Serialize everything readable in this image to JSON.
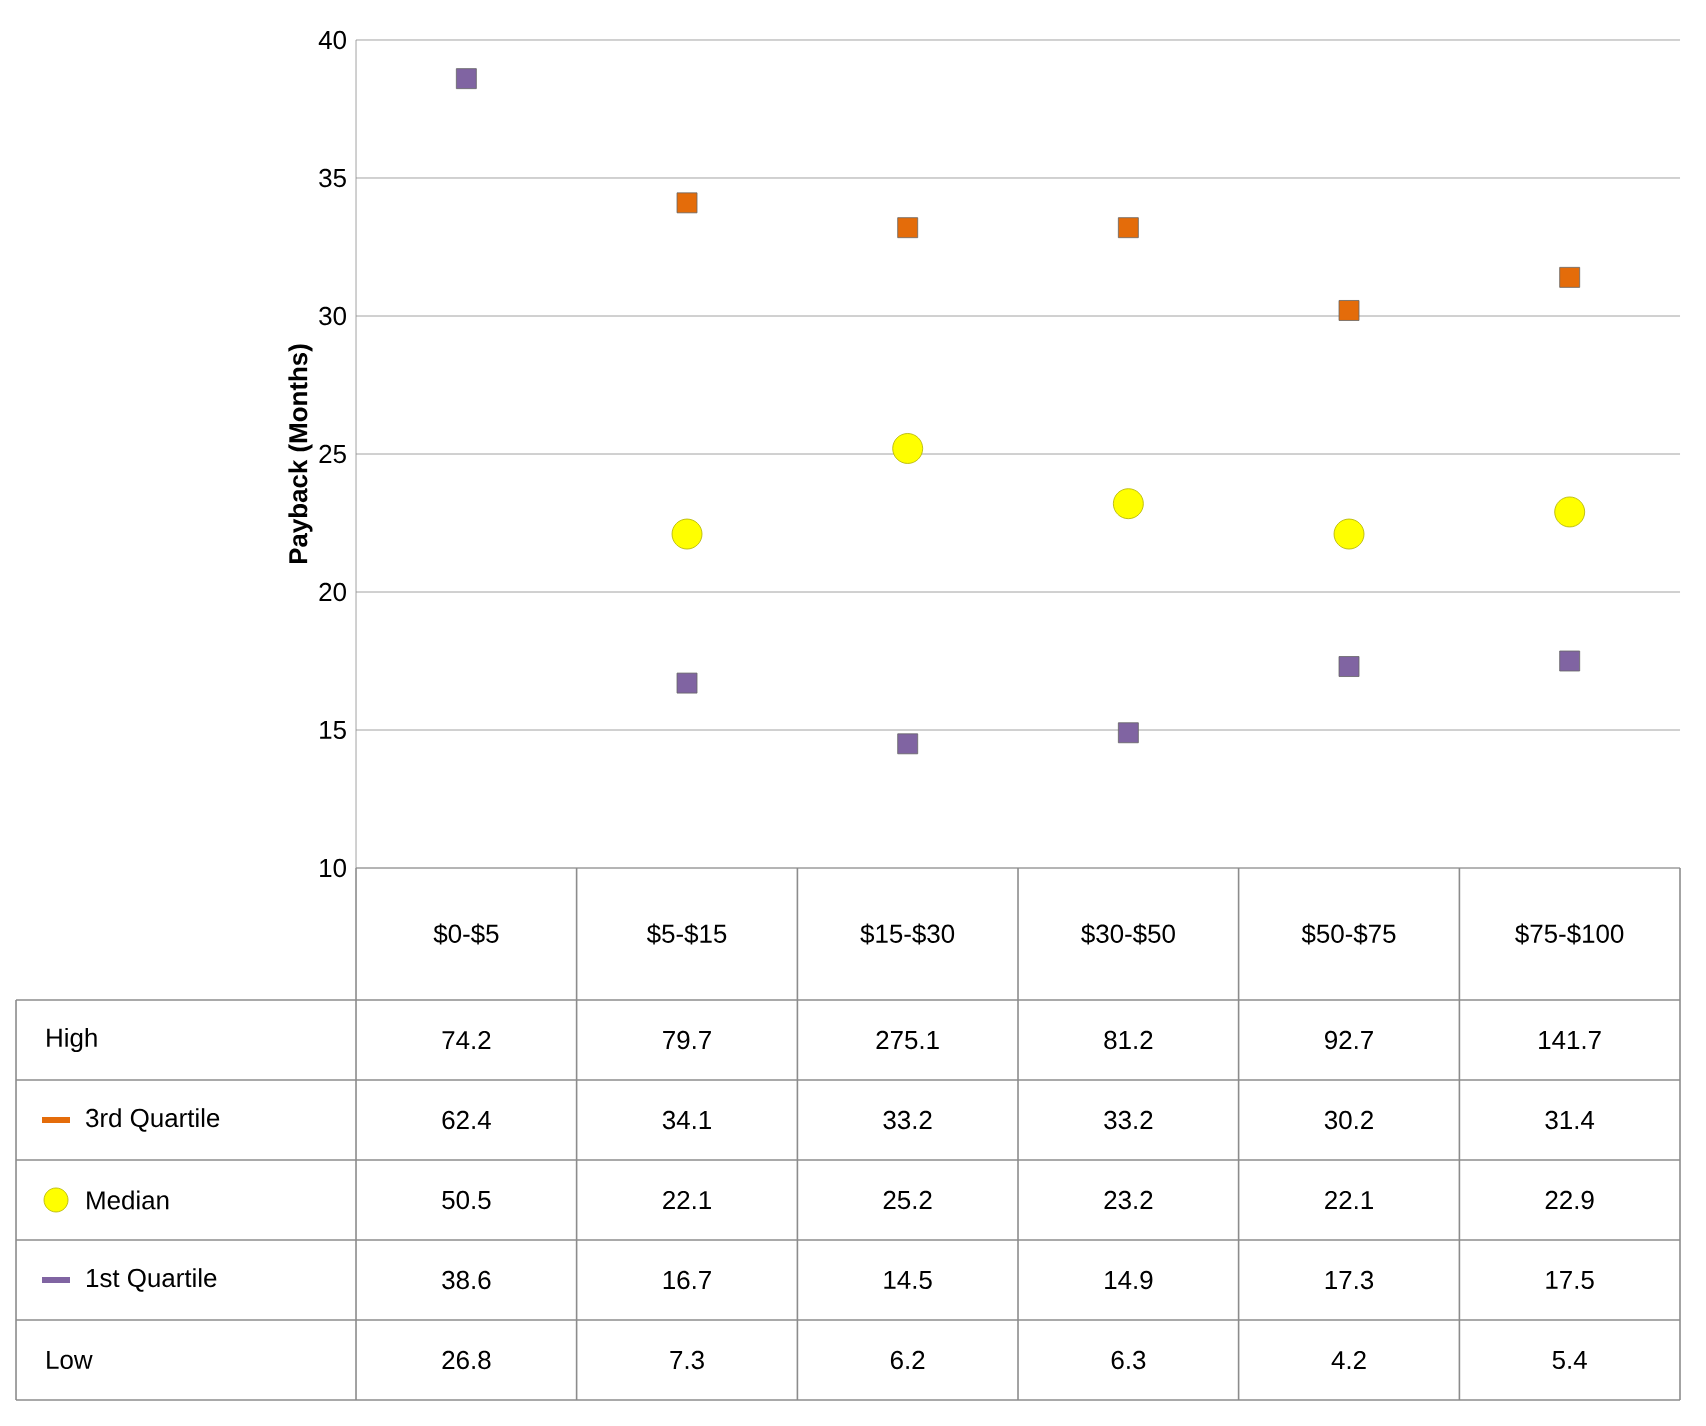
{
  "chart_data": {
    "type": "scatter",
    "ylabel": "Payback (Months)",
    "categories": [
      "$0-$5",
      "$5-$15",
      "$15-$30",
      "$30-$50",
      "$50-$75",
      "$75-$100"
    ],
    "ylim": [
      10,
      40
    ],
    "yticks": [
      10,
      15,
      20,
      25,
      30,
      35,
      40
    ],
    "grid": "y",
    "legend": "bottom",
    "series": [
      {
        "name": "High",
        "marker": "none",
        "values": [
          null,
          null,
          null,
          null,
          null,
          null
        ],
        "value_labels": [
          "74.2",
          "79.7",
          "275.1",
          "81.2",
          "92.7",
          "141.7"
        ]
      },
      {
        "name": "3rd Quartile",
        "marker": "square",
        "color": "#e46c0a",
        "values": [
          null,
          34.1,
          33.2,
          33.2,
          30.2,
          31.4
        ],
        "value_labels": [
          "62.4",
          "34.1",
          "33.2",
          "33.2",
          "30.2",
          "31.4"
        ]
      },
      {
        "name": "Median",
        "marker": "circle",
        "color": "#ffff00",
        "values": [
          null,
          22.1,
          25.2,
          23.2,
          22.1,
          22.9
        ],
        "value_labels": [
          "50.5",
          "22.1",
          "25.2",
          "23.2",
          "22.1",
          "22.9"
        ]
      },
      {
        "name": "1st Quartile",
        "marker": "square",
        "color": "#8064a2",
        "values": [
          38.6,
          16.7,
          14.5,
          14.9,
          17.3,
          17.5
        ],
        "value_labels": [
          "38.6",
          "16.7",
          "14.5",
          "14.9",
          "17.3",
          "17.5"
        ]
      },
      {
        "name": "Low",
        "marker": "none",
        "values": [
          null,
          null,
          null,
          null,
          null,
          null
        ],
        "value_labels": [
          "26.8",
          "7.3",
          "6.2",
          "6.3",
          "4.2",
          "5.4"
        ]
      }
    ]
  }
}
